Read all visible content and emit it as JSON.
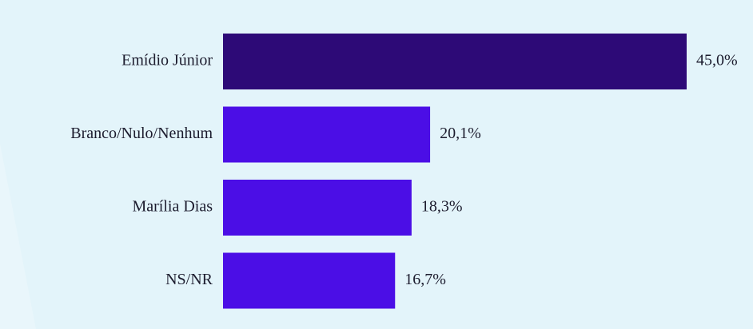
{
  "chart_data": {
    "type": "hbar",
    "categories": [
      "Emídio Júnior",
      "Branco/Nulo/Nenhum",
      "Marília Dias",
      "NS/NR"
    ],
    "values": [
      45.0,
      20.1,
      18.3,
      16.7
    ],
    "value_labels": [
      "45,0%",
      "20,1%",
      "18,3%",
      "16,7%"
    ],
    "colors": [
      "#2d0a77",
      "#4b0ee6",
      "#4b0ee6",
      "#4b0ee6"
    ]
  }
}
